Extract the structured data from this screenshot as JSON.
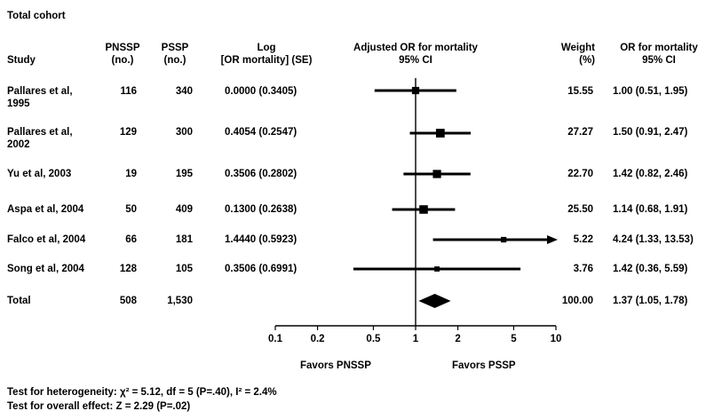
{
  "section_title": "Total cohort",
  "headers": {
    "study": "Study",
    "pnssp": [
      "PNSSP",
      "(no.)"
    ],
    "pssp": [
      "PSSP",
      "(no.)"
    ],
    "log": [
      "Log",
      "[OR mortality] (SE)"
    ],
    "adjusted": [
      "Adjusted OR for mortality",
      "95% CI"
    ],
    "weight": [
      "Weight",
      "(%)"
    ],
    "or": [
      "OR for mortality",
      "95% CI"
    ]
  },
  "rows": [
    {
      "study": "Pallares et al, 1995",
      "pnssp": "116",
      "pssp": "340",
      "log_se": "0.0000 (0.3405)",
      "weight": "15.55",
      "or_ci": "1.00 (0.51, 1.95)"
    },
    {
      "study": "Pallares et al, 2002",
      "pnssp": "129",
      "pssp": "300",
      "log_se": "0.4054 (0.2547)",
      "weight": "27.27",
      "or_ci": "1.50 (0.91, 2.47)"
    },
    {
      "study": "Yu et al, 2003",
      "pnssp": "19",
      "pssp": "195",
      "log_se": "0.3506 (0.2802)",
      "weight": "22.70",
      "or_ci": "1.42 (0.82, 2.46)"
    },
    {
      "study": "Aspa et al, 2004",
      "pnssp": "50",
      "pssp": "409",
      "log_se": "0.1300 (0.2638)",
      "weight": "25.50",
      "or_ci": "1.14 (0.68, 1.91)"
    },
    {
      "study": "Falco et al, 2004",
      "pnssp": "66",
      "pssp": "181",
      "log_se": "1.4440 (0.5923)",
      "weight": "5.22",
      "or_ci": "4.24 (1.33, 13.53)"
    },
    {
      "study": "Song et al, 2004",
      "pnssp": "128",
      "pssp": "105",
      "log_se": "0.3506 (0.6991)",
      "weight": "3.76",
      "or_ci": "1.42 (0.36, 5.59)"
    }
  ],
  "total": {
    "label": "Total",
    "pnssp": "508",
    "pssp": "1,530",
    "weight": "100.00",
    "or_ci": "1.37 (1.05, 1.78)"
  },
  "favors_left": "Favors PNSSP",
  "favors_right": "Favors PSSP",
  "footer": {
    "heterogeneity": "Test for heterogeneity: χ² = 5.12, df = 5 (P=.40), I² = 2.4%",
    "overall": "Test for overall effect: Z = 2.29 (P=.02)"
  },
  "chart_data": {
    "type": "forest",
    "scale": "log",
    "xlim": [
      0.1,
      10
    ],
    "ticks": [
      {
        "value": 0.1,
        "label": "0.1"
      },
      {
        "value": 0.2,
        "label": "0.2"
      },
      {
        "value": 0.5,
        "label": "0.5"
      },
      {
        "value": 1,
        "label": "1"
      },
      {
        "value": 2,
        "label": "2"
      },
      {
        "value": 5,
        "label": "5"
      },
      {
        "value": 10,
        "label": "10"
      }
    ],
    "studies": [
      {
        "or": 1.0,
        "lo": 0.51,
        "hi": 1.95,
        "weight": 15.55
      },
      {
        "or": 1.5,
        "lo": 0.91,
        "hi": 2.47,
        "weight": 27.27
      },
      {
        "or": 1.42,
        "lo": 0.82,
        "hi": 2.46,
        "weight": 22.7
      },
      {
        "or": 1.14,
        "lo": 0.68,
        "hi": 1.91,
        "weight": 25.5
      },
      {
        "or": 4.24,
        "lo": 1.33,
        "hi": 13.53,
        "weight": 5.22,
        "arrow_right": true
      },
      {
        "or": 1.42,
        "lo": 0.36,
        "hi": 5.59,
        "weight": 3.76
      }
    ],
    "pooled": {
      "or": 1.37,
      "lo": 1.05,
      "hi": 1.78
    }
  }
}
